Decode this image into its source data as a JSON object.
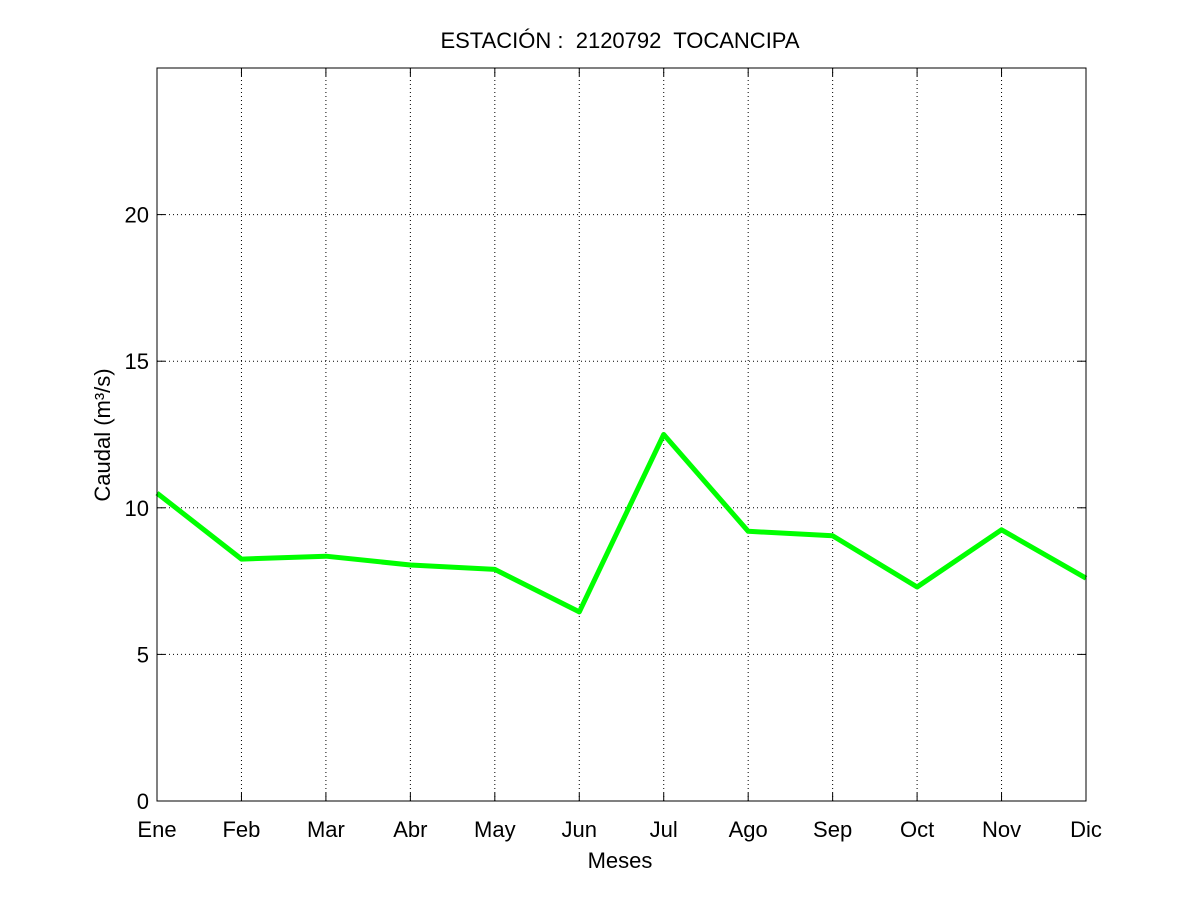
{
  "chart_data": {
    "type": "line",
    "title": "ESTACIÓN :  2120792  TOCANCIPA",
    "xlabel": "Meses",
    "ylabel": "Caudal (m³/s)",
    "categories": [
      "Ene",
      "Feb",
      "Mar",
      "Abr",
      "May",
      "Jun",
      "Jul",
      "Ago",
      "Sep",
      "Oct",
      "Nov",
      "Dic"
    ],
    "series": [
      {
        "values": [
          10.5,
          8.25,
          8.35,
          8.05,
          7.9,
          6.45,
          12.5,
          9.2,
          9.05,
          7.3,
          9.25,
          7.6
        ]
      }
    ],
    "ylim": [
      0,
      25
    ],
    "yticks": [
      0,
      5,
      10,
      15,
      20
    ],
    "ytick_labels": [
      "0",
      "5",
      "10",
      "15",
      "20"
    ],
    "grid": true,
    "line_color": "#00ff00"
  }
}
